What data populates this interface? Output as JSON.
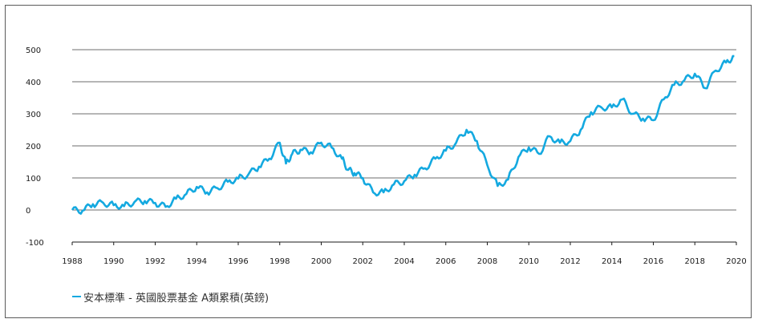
{
  "chart_data": {
    "type": "line",
    "title": "",
    "xlabel": "",
    "ylabel": "",
    "xlim": [
      1988,
      2020
    ],
    "ylim": [
      -100,
      500
    ],
    "grid": true,
    "legend_position": "bottom-left",
    "y_ticks": [
      "-100",
      "0",
      "100",
      "200",
      "300",
      "400",
      "500"
    ],
    "x_ticks": [
      "1988",
      "1990",
      "1992",
      "1994",
      "1996",
      "1998",
      "2000",
      "2002",
      "2004",
      "2006",
      "2008",
      "2010",
      "2012",
      "2014",
      "2016",
      "2018",
      "2020"
    ],
    "series": [
      {
        "name": "安本標準 - 英國股票基金 A類累積(英鎊)",
        "color": "#14a9e0",
        "x": [
          1988.0,
          1988.5,
          1989.0,
          1989.5,
          1990.0,
          1990.5,
          1991.0,
          1991.5,
          1992.0,
          1992.5,
          1993.0,
          1993.5,
          1994.0,
          1994.5,
          1995.0,
          1995.5,
          1996.0,
          1996.5,
          1997.0,
          1997.5,
          1998.0,
          1998.3,
          1998.6,
          1999.0,
          1999.5,
          2000.0,
          2000.5,
          2001.0,
          2001.3,
          2001.6,
          2002.0,
          2002.5,
          2003.0,
          2003.5,
          2004.0,
          2004.5,
          2005.0,
          2005.5,
          2006.0,
          2006.5,
          2007.0,
          2007.5,
          2008.0,
          2008.5,
          2009.0,
          2009.5,
          2010.0,
          2010.5,
          2011.0,
          2011.5,
          2012.0,
          2012.5,
          2013.0,
          2013.5,
          2014.0,
          2014.5,
          2015.0,
          2015.5,
          2016.0,
          2016.5,
          2017.0,
          2017.5,
          2018.0,
          2018.5,
          2019.0,
          2019.5,
          2019.9
        ],
        "y": [
          0,
          -2,
          18,
          22,
          15,
          12,
          25,
          28,
          22,
          10,
          35,
          50,
          72,
          55,
          68,
          88,
          98,
          112,
          135,
          160,
          210,
          145,
          175,
          188,
          180,
          210,
          195,
          160,
          125,
          115,
          100,
          55,
          55,
          80,
          90,
          110,
          130,
          160,
          185,
          210,
          250,
          215,
          140,
          75,
          95,
          165,
          195,
          175,
          230,
          210,
          215,
          250,
          305,
          320,
          320,
          345,
          300,
          285,
          280,
          345,
          390,
          405,
          425,
          380,
          435,
          460,
          480
        ]
      }
    ]
  }
}
